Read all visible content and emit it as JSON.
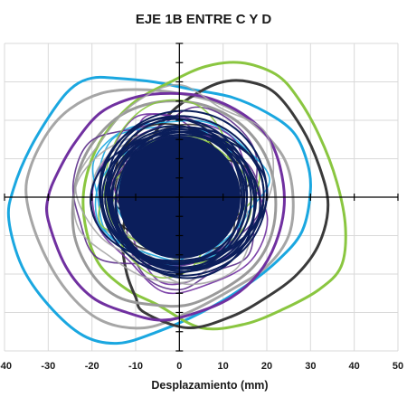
{
  "chart_data": {
    "type": "line",
    "title": "EJE 1B ENTRE C Y D",
    "xlabel": "Desplazamiento (mm)",
    "ylabel": "",
    "xlim": [
      -40,
      50
    ],
    "ylim": [
      -40,
      40
    ],
    "xticks": [
      -40,
      -30,
      -20,
      -10,
      0,
      10,
      20,
      30,
      40,
      50
    ],
    "grid": true,
    "legend": "none",
    "colors": {
      "grid": "#d9d9d9",
      "axis": "#000000",
      "core": "#0b1e5b"
    },
    "series": [
      {
        "color": "#1aa7e0",
        "x": [
          -39,
          -36,
          -30,
          -22,
          -14,
          -5,
          5,
          14,
          22,
          28,
          30,
          29,
          26,
          20,
          12,
          3,
          -6,
          -15,
          -20,
          -24,
          -28,
          -34,
          -38
        ],
        "y": [
          -6,
          -18,
          -28,
          -36,
          -38,
          -35,
          -30,
          -24,
          -17,
          -9,
          2,
          10,
          17,
          22,
          26,
          28,
          30,
          31,
          31,
          29,
          24,
          13,
          2
        ]
      },
      {
        "color": "#a6a6a6",
        "x": [
          -35,
          -32,
          -26,
          -18,
          -8,
          2,
          12,
          20,
          25,
          26,
          24,
          18,
          10,
          0,
          -10,
          -18,
          -25,
          -30,
          -34
        ],
        "y": [
          0,
          -12,
          -24,
          -32,
          -34,
          -30,
          -24,
          -18,
          -10,
          0,
          10,
          18,
          24,
          27,
          28,
          27,
          23,
          17,
          8
        ]
      },
      {
        "color": "#8ac640",
        "x": [
          -5,
          5,
          15,
          24,
          32,
          37,
          38,
          36,
          32,
          27,
          22,
          14,
          6,
          -2,
          -10,
          -16,
          -20,
          -22,
          -21,
          -18,
          -12
        ],
        "y": [
          -28,
          -34,
          -33,
          -29,
          -24,
          -18,
          -8,
          4,
          16,
          26,
          32,
          35,
          34,
          30,
          25,
          18,
          10,
          0,
          -10,
          -18,
          -24
        ]
      },
      {
        "color": "#3a3a3a",
        "x": [
          -8,
          2,
          12,
          20,
          27,
          32,
          34,
          32,
          28,
          22,
          16,
          10,
          4,
          -2,
          -6,
          -10,
          -12,
          -13,
          -12,
          -10
        ],
        "y": [
          -30,
          -34,
          -31,
          -26,
          -20,
          -12,
          -2,
          8,
          18,
          27,
          30,
          30,
          27,
          22,
          16,
          8,
          -2,
          -12,
          -20,
          -26
        ]
      },
      {
        "color": "#7030a0",
        "x": [
          -30,
          -26,
          -20,
          -12,
          -4,
          4,
          12,
          18,
          22,
          24,
          23,
          20,
          14,
          6,
          -2,
          -10,
          -18,
          -24,
          -28,
          -30
        ],
        "y": [
          -6,
          -18,
          -26,
          -30,
          -32,
          -30,
          -26,
          -20,
          -12,
          -2,
          8,
          16,
          22,
          26,
          27,
          26,
          22,
          14,
          6,
          0
        ]
      },
      {
        "color": "#9a9a9a",
        "x": [
          -24,
          -20,
          -14,
          -6,
          2,
          10,
          17,
          21,
          22,
          20,
          15,
          8,
          0,
          -8,
          -15,
          -21,
          -24
        ],
        "y": [
          -10,
          -20,
          -26,
          -28,
          -28,
          -24,
          -18,
          -10,
          0,
          10,
          18,
          23,
          25,
          24,
          20,
          12,
          2
        ]
      }
    ],
    "core_region": {
      "color": "#0b1e5b",
      "cx": 0,
      "cy": 0,
      "rx": 14,
      "ry": 16
    }
  }
}
